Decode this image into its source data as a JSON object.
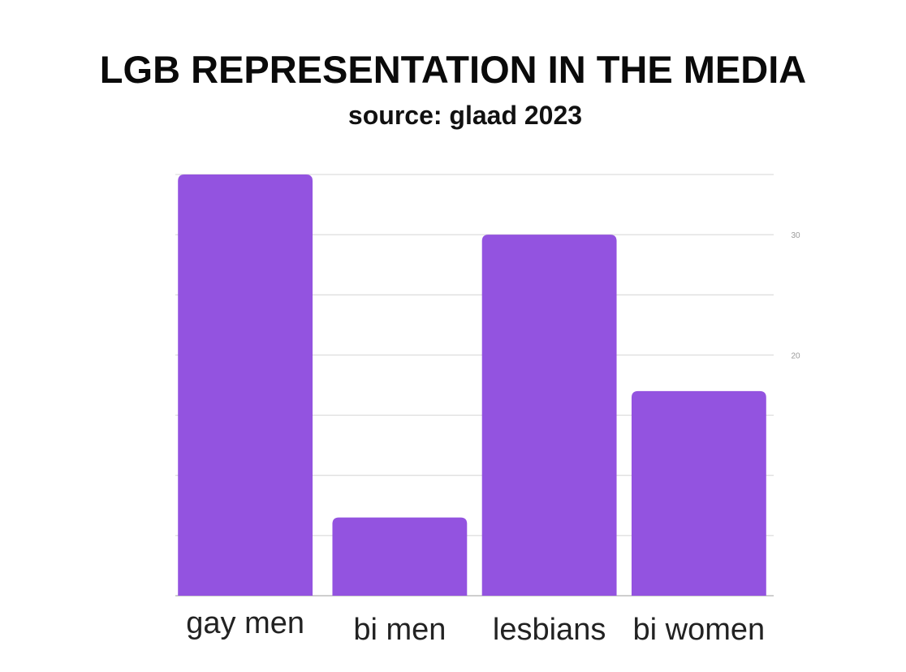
{
  "chart_data": {
    "type": "bar",
    "title": "LGB REPRESENTATION IN THE MEDIA",
    "subtitle": "source: glaad 2023",
    "categories": [
      "gay men",
      "bi men",
      "lesbians",
      "bi women"
    ],
    "values": [
      35,
      6.5,
      30,
      17
    ],
    "ylim": [
      0,
      35
    ],
    "yticks": [
      {
        "value": 20,
        "label": "20"
      },
      {
        "value": 30,
        "label": "30"
      }
    ],
    "gridlines": [
      5,
      10,
      15,
      20,
      25,
      30,
      35
    ],
    "grid": true,
    "bar_color": "#9353e0"
  }
}
